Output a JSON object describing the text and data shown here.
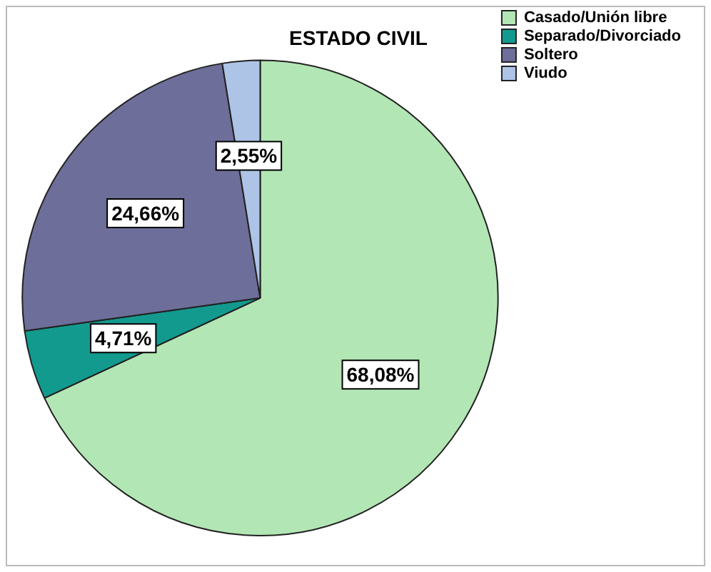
{
  "chart_data": {
    "type": "pie",
    "title": "ESTADO CIVIL",
    "categories": [
      "Casado/Unión libre",
      "Separado/Divorciado",
      "Soltero",
      "Viudo"
    ],
    "values": [
      68.08,
      4.71,
      24.66,
      2.55
    ],
    "value_labels": [
      "68,08%",
      "4,71%",
      "24,66%",
      "2,55%"
    ],
    "colors": [
      "#b3e6b5",
      "#129a8f",
      "#6e6e9a",
      "#aec4e6"
    ],
    "legend": "top right"
  }
}
